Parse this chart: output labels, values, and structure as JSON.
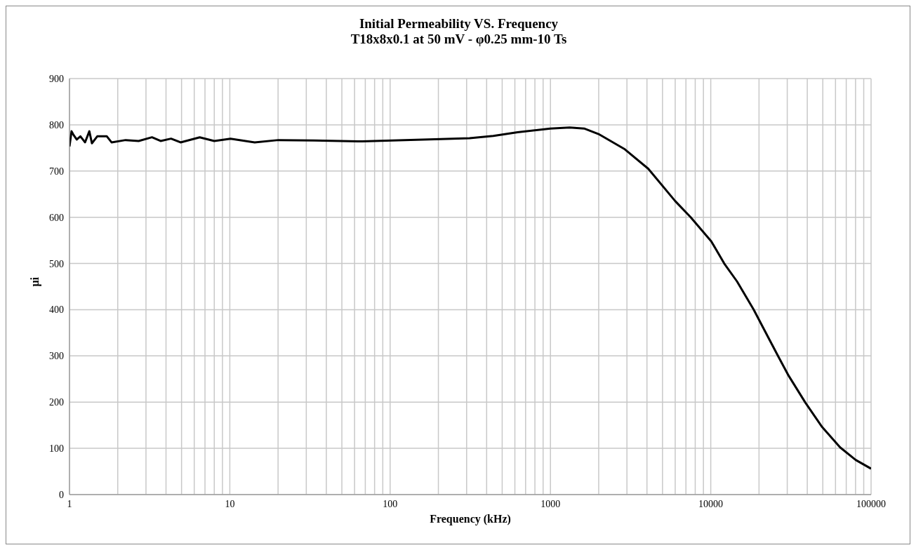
{
  "chart_data": {
    "type": "line",
    "title": "Initial Permeability VS. Frequency",
    "subtitle": "T18x8x0.1 at 50 mV - φ0.25 mm-10 Ts",
    "xlabel": "Frequency (kHz)",
    "ylabel": "μi",
    "log": "x",
    "grid": true,
    "marker": "none",
    "line_style": "solid",
    "xlim": [
      1,
      100000
    ],
    "ylim": [
      0,
      900
    ],
    "xticks": [
      1,
      {
        "value": 2,
        "label": null
      },
      {
        "value": 3,
        "label": null
      },
      {
        "value": 4,
        "label": null
      },
      {
        "value": 5,
        "label": null
      },
      {
        "value": 6,
        "label": null
      },
      {
        "value": 7,
        "label": null
      },
      {
        "value": 8,
        "label": null
      },
      {
        "value": 9,
        "label": null
      },
      10,
      {
        "value": 20,
        "label": null
      },
      {
        "value": 30,
        "label": null
      },
      {
        "value": 40,
        "label": null
      },
      {
        "value": 50,
        "label": null
      },
      {
        "value": 60,
        "label": null
      },
      {
        "value": 70,
        "label": null
      },
      {
        "value": 80,
        "label": null
      },
      {
        "value": 90,
        "label": null
      },
      100,
      {
        "value": 200,
        "label": null
      },
      {
        "value": 300,
        "label": null
      },
      {
        "value": 400,
        "label": null
      },
      {
        "value": 500,
        "label": null
      },
      {
        "value": 600,
        "label": null
      },
      {
        "value": 700,
        "label": null
      },
      {
        "value": 800,
        "label": null
      },
      {
        "value": 900,
        "label": null
      },
      1000,
      {
        "value": 2000,
        "label": null
      },
      {
        "value": 3000,
        "label": null
      },
      {
        "value": 4000,
        "label": null
      },
      {
        "value": 5000,
        "label": null
      },
      {
        "value": 6000,
        "label": null
      },
      {
        "value": 7000,
        "label": null
      },
      {
        "value": 8000,
        "label": null
      },
      {
        "value": 9000,
        "label": null
      },
      10000,
      {
        "value": 20000,
        "label": null
      },
      {
        "value": 30000,
        "label": null
      },
      {
        "value": 40000,
        "label": null
      },
      {
        "value": 50000,
        "label": null
      },
      {
        "value": 60000,
        "label": null
      },
      {
        "value": 70000,
        "label": null
      },
      {
        "value": 80000,
        "label": null
      },
      {
        "value": 90000,
        "label": null
      },
      100000
    ],
    "yticks": [
      0,
      100,
      200,
      300,
      400,
      500,
      600,
      700,
      800,
      900
    ],
    "x": [
      1,
      1.03,
      1.06,
      1.11,
      1.17,
      1.25,
      1.33,
      1.38,
      1.49,
      1.71,
      1.83,
      2.24,
      2.7,
      3.27,
      3.7,
      4.3,
      4.93,
      6.49,
      8,
      10.1,
      14.3,
      20.1,
      33.6,
      67,
      207,
      313,
      440,
      624,
      1000,
      1318,
      1622,
      1995,
      2911,
      4074,
      6000,
      7500,
      10070,
      12130,
      14590,
      18540,
      22750,
      26360,
      30620,
      38900,
      49550,
      64120,
      80170,
      100000
    ],
    "series": [
      {
        "color": "#000000",
        "values": [
          753,
          786,
          778,
          768,
          775,
          762,
          786,
          760,
          775,
          775,
          762,
          767,
          765,
          773,
          765,
          770,
          762,
          773,
          765,
          770,
          762,
          767,
          766,
          764,
          769,
          771,
          776,
          784,
          792,
          794,
          792,
          780,
          747,
          705,
          635,
          600,
          548,
          500,
          461,
          400,
          341,
          299,
          257,
          199,
          146,
          102,
          75,
          56
        ]
      }
    ]
  }
}
